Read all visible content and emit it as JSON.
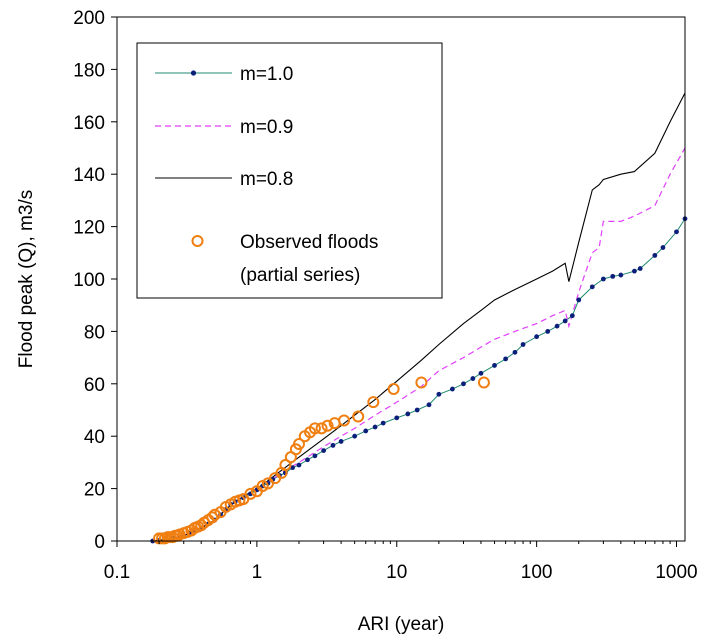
{
  "colors": {
    "background": "#ffffff",
    "axis": "#000000",
    "m10": "#1f8a70",
    "m10_marker": "#0b1f7a",
    "m09": "#e040fb",
    "m08": "#000000",
    "observed": "#f07f12"
  },
  "chart_data": {
    "type": "line",
    "xlabel": "ARI (year)",
    "ylabel": "Flood peak (Q), m3/s",
    "x_scale": "log",
    "xlim": [
      0.1,
      1150
    ],
    "ylim": [
      0,
      200
    ],
    "x_ticks": [
      0.1,
      1,
      10,
      100,
      1000
    ],
    "x_tick_labels": [
      "0.1",
      "1",
      "10",
      "100",
      "1000"
    ],
    "y_ticks": [
      0,
      20,
      40,
      60,
      80,
      100,
      120,
      140,
      160,
      180,
      200
    ],
    "y_tick_labels": [
      "0",
      "20",
      "40",
      "60",
      "80",
      "100",
      "120",
      "140",
      "160",
      "180",
      "200"
    ],
    "grid": false,
    "legend": {
      "placement": "top-left",
      "entries": [
        {
          "label": "m=1.0",
          "style": "line-with-markers"
        },
        {
          "label": "m=0.9",
          "style": "dashed"
        },
        {
          "label": "m=0.8",
          "style": "line"
        },
        {
          "label": "Observed floods",
          "label_line2": "(partial series)",
          "style": "circles"
        }
      ]
    },
    "series": [
      {
        "name": "m=1.0",
        "style": "line-with-markers",
        "x": [
          0.18,
          0.2,
          0.22,
          0.25,
          0.28,
          0.3,
          0.33,
          0.36,
          0.4,
          0.45,
          0.5,
          0.55,
          0.6,
          0.65,
          0.7,
          0.8,
          0.9,
          1.0,
          1.1,
          1.2,
          1.3,
          1.45,
          1.6,
          1.8,
          2.0,
          2.3,
          2.6,
          3.0,
          3.5,
          4.0,
          5.0,
          6.0,
          7.0,
          8.0,
          10,
          12,
          14,
          17,
          20,
          25,
          30,
          35,
          40,
          50,
          60,
          70,
          80,
          100,
          120,
          140,
          160,
          180,
          200,
          250,
          300,
          350,
          400,
          500,
          550,
          700,
          800,
          1000,
          1150
        ],
        "y": [
          0,
          0.2,
          0.5,
          1,
          1.5,
          2,
          3,
          4,
          5,
          6.5,
          8,
          10,
          12,
          14,
          15,
          16.5,
          18,
          19.5,
          21,
          22,
          23.5,
          25,
          26,
          28,
          29,
          31,
          32.5,
          34.5,
          36.5,
          38,
          40,
          42,
          43.5,
          45,
          47,
          48.5,
          50,
          52,
          56,
          58,
          60,
          62,
          64,
          67,
          69.5,
          72,
          75,
          78,
          80,
          82,
          84,
          86,
          92,
          97,
          100,
          101,
          101.5,
          103,
          104,
          109,
          112,
          118,
          123
        ]
      },
      {
        "name": "m=0.9",
        "style": "dashed",
        "x": [
          0.18,
          0.25,
          0.3,
          0.4,
          0.5,
          0.6,
          0.7,
          0.8,
          1.0,
          1.2,
          1.5,
          2.0,
          3.0,
          4.0,
          5.0,
          7.0,
          10,
          15,
          20,
          30,
          40,
          50,
          70,
          100,
          130,
          160,
          170,
          200,
          250,
          280,
          300,
          400,
          500,
          700,
          900,
          1150
        ],
        "y": [
          0,
          1,
          2,
          5,
          8,
          12,
          15,
          17,
          20,
          22.5,
          26,
          30,
          36,
          40,
          43,
          48,
          53,
          59,
          65,
          70,
          74,
          77,
          80,
          83,
          86,
          88,
          82,
          95,
          110,
          112,
          122,
          122,
          124,
          128,
          140,
          150
        ]
      },
      {
        "name": "m=0.8",
        "style": "line",
        "x": [
          0.18,
          0.25,
          0.3,
          0.4,
          0.5,
          0.6,
          0.7,
          0.8,
          1.0,
          1.2,
          1.5,
          2.0,
          3.0,
          4.0,
          5.0,
          7.0,
          10,
          15,
          20,
          30,
          40,
          50,
          70,
          100,
          130,
          160,
          170,
          200,
          250,
          280,
          300,
          400,
          500,
          700,
          900,
          1150
        ],
        "y": [
          0,
          1,
          2,
          5,
          8,
          12,
          15,
          17,
          20,
          23,
          27,
          32,
          39,
          44,
          48,
          54,
          61,
          69,
          75,
          83,
          88,
          92,
          96,
          100,
          103,
          106,
          99,
          114,
          134,
          136,
          138,
          140,
          141,
          148,
          160,
          171
        ]
      },
      {
        "name": "Observed floods",
        "style": "circles",
        "x": [
          0.2,
          0.21,
          0.22,
          0.23,
          0.24,
          0.25,
          0.26,
          0.27,
          0.28,
          0.3,
          0.32,
          0.34,
          0.36,
          0.38,
          0.4,
          0.42,
          0.45,
          0.48,
          0.5,
          0.55,
          0.6,
          0.65,
          0.7,
          0.75,
          0.8,
          0.9,
          1.0,
          1.1,
          1.2,
          1.35,
          1.5,
          1.6,
          1.75,
          1.9,
          2.0,
          2.2,
          2.4,
          2.6,
          2.9,
          3.2,
          3.6,
          4.2,
          5.3,
          6.8,
          9.5,
          15,
          42
        ],
        "y": [
          1,
          1,
          1,
          1.5,
          1.5,
          1.5,
          2,
          2,
          2.5,
          3,
          3.5,
          4,
          5,
          5.5,
          6,
          7,
          8,
          9,
          10,
          11,
          13,
          14,
          15,
          15.5,
          16,
          18,
          19,
          21,
          22,
          24,
          26,
          29,
          32,
          35,
          37,
          40,
          41.5,
          43,
          43,
          44,
          45,
          46,
          47.5,
          53,
          58,
          60.5,
          60.5
        ]
      }
    ]
  }
}
